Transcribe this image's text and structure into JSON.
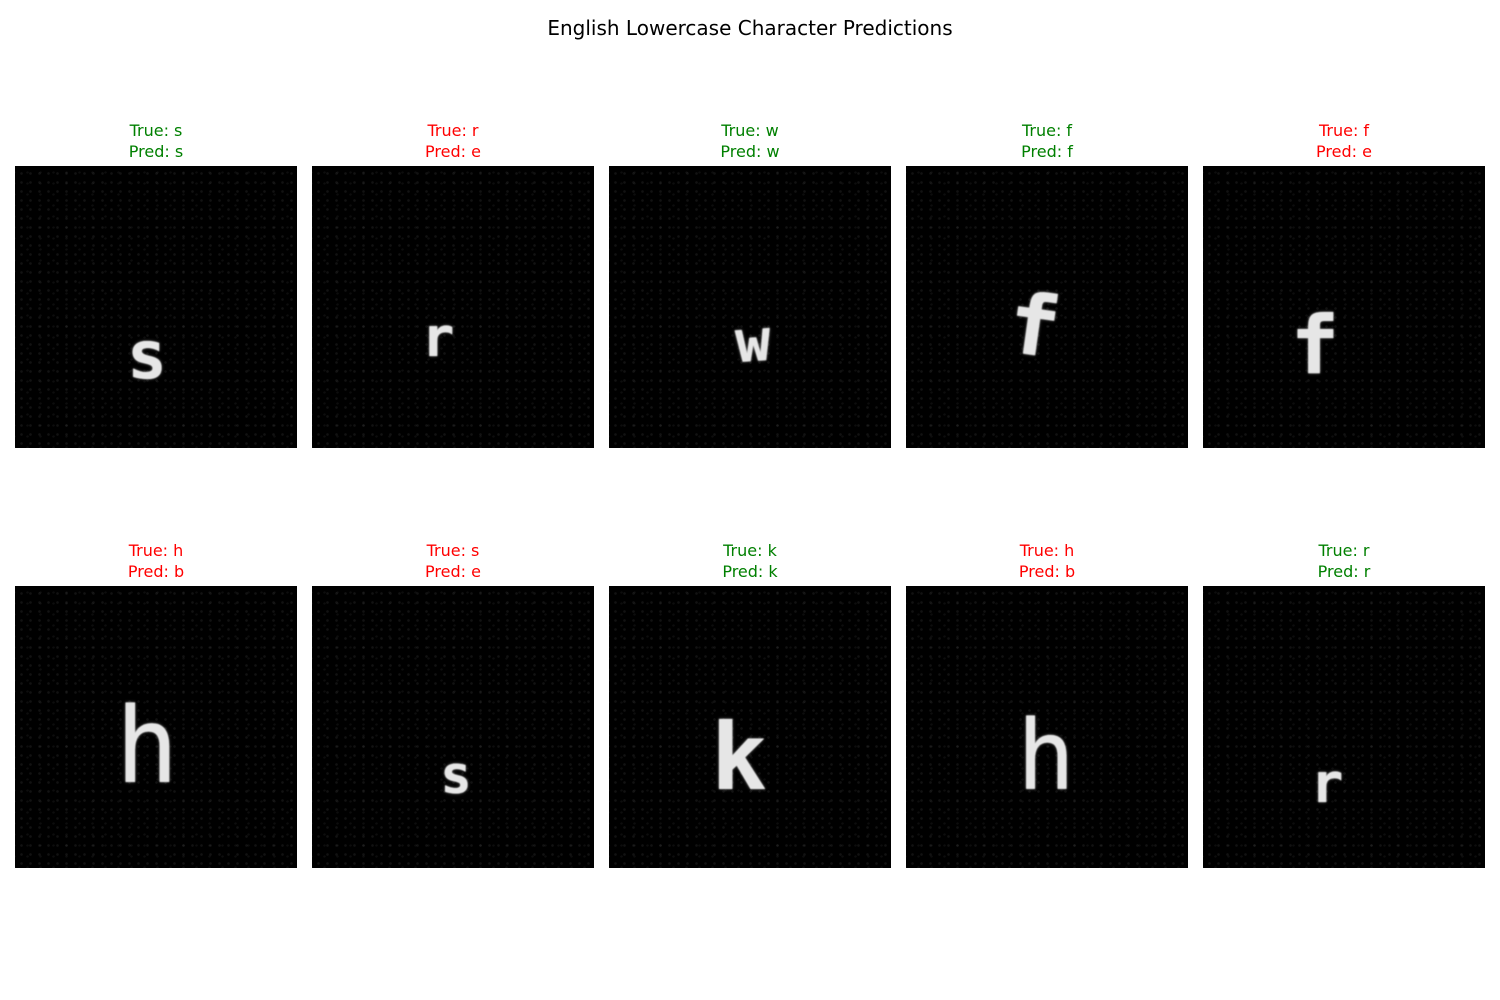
{
  "figure": {
    "title": "English Lowercase Character Predictions"
  },
  "colors": {
    "correct": "#008000",
    "incorrect": "#ff0000"
  },
  "samples": [
    {
      "true_label": "True: s",
      "pred_label": "Pred: s",
      "char": "s",
      "correct": true
    },
    {
      "true_label": "True: r",
      "pred_label": "Pred: e",
      "char": "r",
      "correct": false
    },
    {
      "true_label": "True: w",
      "pred_label": "Pred: w",
      "char": "w",
      "correct": true
    },
    {
      "true_label": "True: f",
      "pred_label": "Pred: f",
      "char": "f",
      "correct": true
    },
    {
      "true_label": "True: f",
      "pred_label": "Pred: e",
      "char": "f",
      "correct": false
    },
    {
      "true_label": "True: h",
      "pred_label": "Pred: b",
      "char": "h",
      "correct": false
    },
    {
      "true_label": "True: s",
      "pred_label": "Pred: e",
      "char": "s",
      "correct": false
    },
    {
      "true_label": "True: k",
      "pred_label": "Pred: k",
      "char": "k",
      "correct": true
    },
    {
      "true_label": "True: h",
      "pred_label": "Pred: b",
      "char": "h",
      "correct": false
    },
    {
      "true_label": "True: r",
      "pred_label": "Pred: r",
      "char": "r",
      "correct": true
    }
  ]
}
